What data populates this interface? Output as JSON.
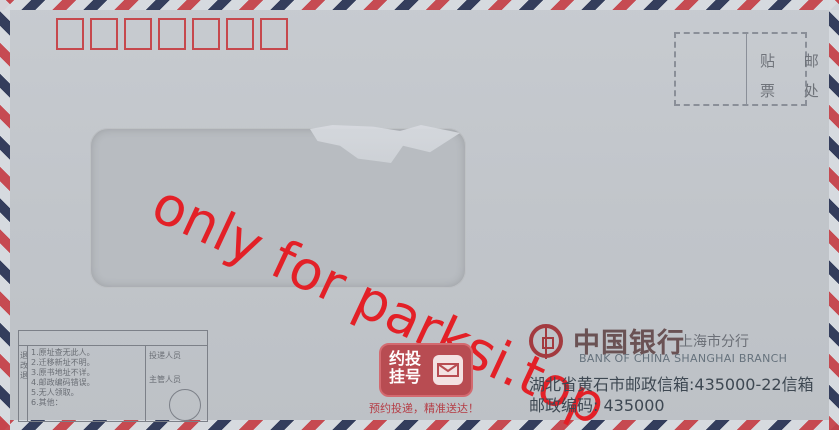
{
  "envelope": {
    "stamp_text": [
      "贴 邮",
      "票 处"
    ],
    "watermark": "only for parksi.top",
    "bottom_left_box": {
      "left_column": "退\n改\n退",
      "reasons": [
        "1.原址查无此人。",
        "2.迁移新址不明。",
        "3.原书地址不详。",
        "4.邮政编码错误。",
        "5.无人领取。",
        "6.其他："
      ],
      "staff1": "投递人员",
      "staff2": "主管人员"
    },
    "registered_badge": {
      "line1": "约投",
      "line2": "挂号"
    },
    "registered_caption": "预约投递，精准送达！",
    "bank": {
      "name_cn": "中国银行",
      "branch_cn": "上海市分行",
      "name_en": "BANK OF CHINA  SHANGHAI BRANCH"
    },
    "address": {
      "line1": "湖北省黄石市邮政信箱:435000-22信箱",
      "line2": "邮政编码: 435000"
    }
  },
  "colors": {
    "red": "#c6444b",
    "bank_red": "#a33a3f",
    "background": "#4f5256",
    "paper": "#c7cbd0"
  }
}
